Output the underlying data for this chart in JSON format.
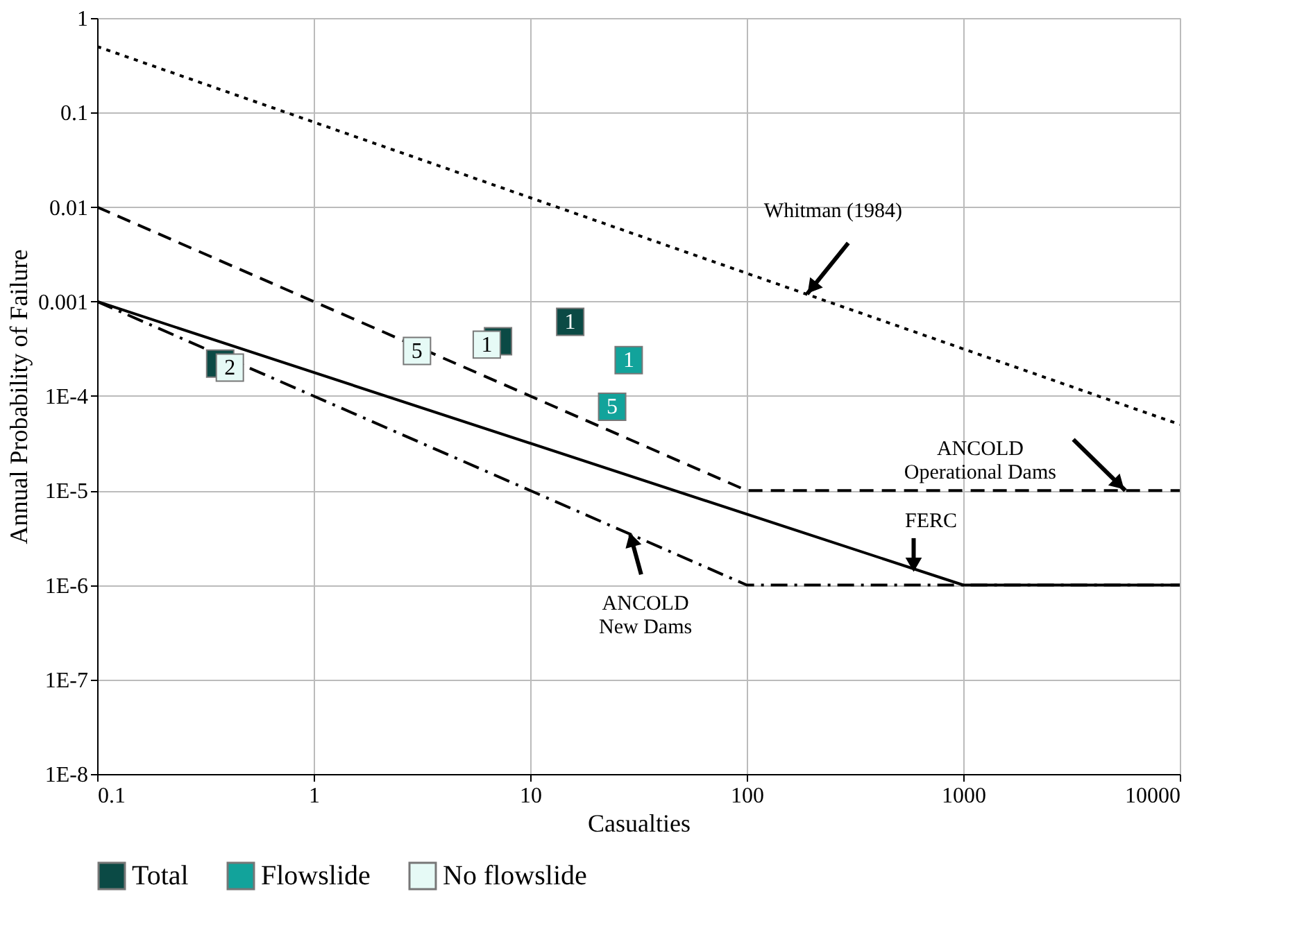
{
  "chart_data": {
    "type": "scatter",
    "xlabel": "Casualties",
    "ylabel": "Annual Probability of Failure",
    "log": "xy",
    "grid": true,
    "legend": "bottom",
    "xlim": [
      0.1,
      10000
    ],
    "ylim": [
      1e-08,
      1
    ],
    "xticks": [
      0.1,
      1,
      10,
      100,
      1000,
      10000
    ],
    "yticks": [
      {
        "value": 1e-08,
        "label": "1E-8"
      },
      {
        "value": 1e-07,
        "label": "1E-7"
      },
      {
        "value": 1e-06,
        "label": "1E-6"
      },
      {
        "value": 1e-05,
        "label": "1E-5"
      },
      {
        "value": 0.0001,
        "label": "1E-4"
      },
      0.001,
      0.01,
      0.1,
      1
    ],
    "series": [
      {
        "type": "line",
        "line_style": "dotted",
        "color": "#000000",
        "x": [
          0.1,
          10000
        ],
        "values": [
          0.5,
          5e-05
        ]
      },
      {
        "type": "line",
        "line_style": "dashed",
        "color": "#000000",
        "x": [
          0.1,
          100,
          10000
        ],
        "values": [
          0.01,
          1e-05,
          1e-05
        ]
      },
      {
        "type": "line",
        "line_style": "solid",
        "color": "#000000",
        "x": [
          0.1,
          1000,
          10000
        ],
        "values": [
          0.001,
          1e-06,
          1e-06
        ]
      },
      {
        "type": "line",
        "line_style": "dashdot",
        "color": "#000000",
        "x": [
          0.1,
          100,
          10000
        ],
        "values": [
          0.001,
          1e-06,
          1e-06
        ]
      },
      {
        "name": "Total",
        "marker": "square",
        "color": "#0b4a45",
        "x": [
          0.37,
          7.1,
          15.3
        ],
        "values": [
          0.00022,
          0.00038,
          0.00061
        ]
      },
      {
        "name": "Flowslide",
        "marker": "square",
        "color": "#12a39b",
        "x": [
          28.5,
          23.9
        ],
        "values": [
          0.00024,
          7.7e-05
        ]
      },
      {
        "name": "No flowslide",
        "marker": "square",
        "color": "#e6faf6",
        "x": [
          0.41,
          3.0,
          6.3
        ],
        "values": [
          0.0002,
          0.0003,
          0.00035
        ]
      }
    ],
    "annotations": [
      {
        "text": "Whitman (1984)",
        "x": 190,
        "y": 0.0012
      },
      {
        "text": "ANCOLD\nOperational Dams",
        "x": 5600,
        "y": 1e-05
      },
      {
        "text": "FERC",
        "x": 590,
        "y": 1.5e-06
      },
      {
        "text": "ANCOLD\nNew Dams",
        "x": 29,
        "y": 3.4e-06
      },
      {
        "text": "1",
        "x": 15.3,
        "y": 0.00061
      },
      {
        "text": "1",
        "x": 28.5,
        "y": 0.00024
      },
      {
        "text": "5",
        "x": 23.9,
        "y": 7.7e-05
      },
      {
        "text": "2",
        "x": 0.41,
        "y": 0.0002
      },
      {
        "text": "5",
        "x": 3.0,
        "y": 0.0003
      },
      {
        "text": "1",
        "x": 6.3,
        "y": 0.00035
      }
    ]
  }
}
